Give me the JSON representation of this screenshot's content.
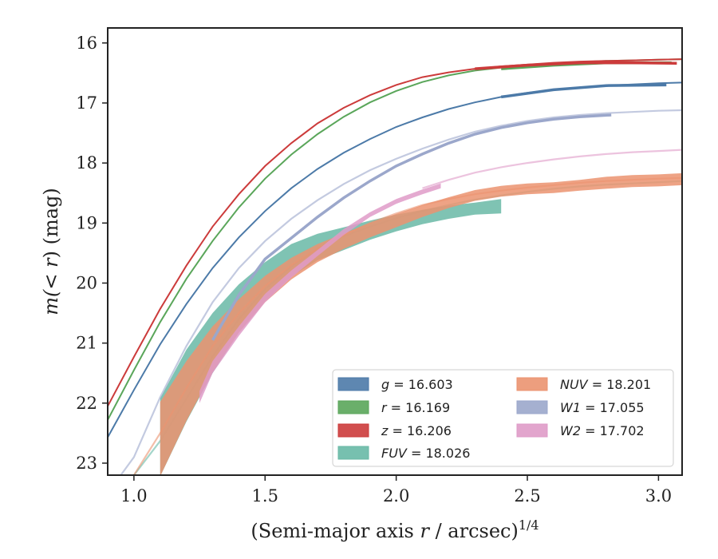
{
  "chart_data": {
    "type": "line",
    "xlabel_main": "(Semi-major axis ",
    "xlabel_r": "r",
    "xlabel_tail": " / arcsec)",
    "xlabel_exp": "1/4",
    "ylabel_main": "m(",
    "ylabel_r": "< r",
    "ylabel_tail": ") (mag)",
    "xlim": [
      0.9,
      3.09
    ],
    "ylim": [
      23.2,
      15.75
    ],
    "y_inverted": true,
    "xticks": [
      1.0,
      1.5,
      2.0,
      2.5,
      3.0
    ],
    "xtick_labels": [
      "1.0",
      "1.5",
      "2.0",
      "2.5",
      "3.0"
    ],
    "yticks": [
      16,
      17,
      18,
      19,
      20,
      21,
      22,
      23
    ],
    "ytick_labels": [
      "16",
      "17",
      "18",
      "19",
      "20",
      "21",
      "22",
      "23"
    ],
    "grid": false,
    "legend_position": "lower-right",
    "legend_columns": 2,
    "series": [
      {
        "name": "g",
        "label_var": "g",
        "label_value": "= 16.603",
        "color": "#4c7aa8",
        "model": {
          "x": [
            0.9,
            1.0,
            1.1,
            1.2,
            1.3,
            1.4,
            1.5,
            1.6,
            1.7,
            1.8,
            1.9,
            2.0,
            2.1,
            2.2,
            2.3,
            2.4,
            2.5,
            2.6,
            2.7,
            2.8,
            2.9,
            3.0,
            3.09
          ],
          "y": [
            22.57,
            21.78,
            21.02,
            20.35,
            19.75,
            19.24,
            18.8,
            18.42,
            18.1,
            17.83,
            17.6,
            17.4,
            17.24,
            17.1,
            16.99,
            16.9,
            16.83,
            16.78,
            16.74,
            16.71,
            16.69,
            16.67,
            16.66
          ]
        },
        "data": {
          "x": [
            2.4,
            2.6,
            2.8,
            3.03
          ],
          "y": [
            16.9,
            16.78,
            16.71,
            16.7
          ],
          "band": 0.02
        }
      },
      {
        "name": "r",
        "label_var": "r",
        "label_value": "= 16.169",
        "color": "#5aa65a",
        "model": {
          "x": [
            0.9,
            1.0,
            1.1,
            1.2,
            1.3,
            1.4,
            1.5,
            1.6,
            1.7,
            1.8,
            1.9,
            2.0,
            2.1,
            2.2,
            2.3,
            2.4,
            2.5,
            2.6,
            2.7,
            2.8,
            2.9,
            3.0,
            3.09
          ],
          "y": [
            22.28,
            21.45,
            20.65,
            19.93,
            19.3,
            18.74,
            18.26,
            17.86,
            17.52,
            17.23,
            16.99,
            16.8,
            16.65,
            16.54,
            16.46,
            16.41,
            16.37,
            16.34,
            16.32,
            16.3,
            16.29,
            16.28,
            16.27
          ]
        },
        "data": {
          "x": [
            2.4,
            2.6,
            2.8,
            3.05
          ],
          "y": [
            16.43,
            16.37,
            16.33,
            16.33
          ],
          "band": 0.02
        }
      },
      {
        "name": "z",
        "label_var": "z",
        "label_value": "= 16.206",
        "color": "#cc3b3b",
        "model": {
          "x": [
            0.9,
            1.0,
            1.1,
            1.2,
            1.3,
            1.4,
            1.5,
            1.6,
            1.7,
            1.8,
            1.9,
            2.0,
            2.1,
            2.2,
            2.3,
            2.4,
            2.5,
            2.6,
            2.7,
            2.8,
            2.9,
            3.0,
            3.09
          ],
          "y": [
            22.05,
            21.23,
            20.43,
            19.71,
            19.06,
            18.52,
            18.05,
            17.67,
            17.34,
            17.08,
            16.87,
            16.7,
            16.57,
            16.49,
            16.43,
            16.39,
            16.36,
            16.33,
            16.31,
            16.3,
            16.29,
            16.28,
            16.27
          ]
        },
        "data": {
          "x": [
            2.3,
            2.5,
            2.7,
            2.9,
            3.07
          ],
          "y": [
            16.43,
            16.37,
            16.33,
            16.33,
            16.34
          ],
          "band": 0.03
        }
      },
      {
        "name": "FUV",
        "label_var": "FUV",
        "label_value": "= 18.026",
        "color": "#68b9a6",
        "model": {
          "x": [
            1.0,
            1.1,
            1.2,
            1.3,
            1.4,
            1.5,
            1.6,
            1.7,
            1.8,
            1.9,
            2.0,
            2.1,
            2.2,
            2.3,
            2.4,
            2.5,
            2.6,
            2.7,
            2.8,
            2.9,
            3.0,
            3.09
          ],
          "y": [
            23.2,
            22.63,
            21.93,
            21.22,
            20.6,
            20.1,
            19.72,
            19.43,
            19.22,
            19.06,
            18.92,
            18.8,
            18.7,
            18.61,
            18.54,
            18.48,
            18.43,
            18.39,
            18.36,
            18.34,
            18.32,
            18.3
          ]
        },
        "data": {
          "x": [
            1.1,
            1.2,
            1.3,
            1.4,
            1.5,
            1.6,
            1.7,
            1.8,
            1.9,
            2.0,
            2.1,
            2.2,
            2.3,
            2.4
          ],
          "y": [
            22.57,
            21.71,
            21.0,
            20.42,
            19.97,
            19.62,
            19.4,
            19.26,
            19.12,
            19.0,
            18.9,
            18.82,
            18.76,
            18.72
          ],
          "band": [
            0.65,
            0.6,
            0.5,
            0.4,
            0.32,
            0.27,
            0.22,
            0.19,
            0.16,
            0.14,
            0.12,
            0.11,
            0.1,
            0.12
          ]
        }
      },
      {
        "name": "NUV",
        "label_var": "NUV",
        "label_value": "= 18.201",
        "color": "#eb9370",
        "model": {
          "x": [
            1.0,
            1.1,
            1.2,
            1.3,
            1.4,
            1.5,
            1.6,
            1.7,
            1.8,
            1.9,
            2.0,
            2.1,
            2.2,
            2.3,
            2.4,
            2.5,
            2.6,
            2.7,
            2.8,
            2.9,
            3.0,
            3.09
          ],
          "y": [
            23.2,
            22.5,
            21.75,
            21.05,
            20.5,
            20.05,
            19.7,
            19.43,
            19.2,
            19.0,
            18.84,
            18.7,
            18.6,
            18.52,
            18.46,
            18.41,
            18.37,
            18.33,
            18.3,
            18.28,
            18.26,
            18.25
          ]
        },
        "data": {
          "x": [
            1.1,
            1.2,
            1.3,
            1.4,
            1.5,
            1.6,
            1.7,
            1.8,
            1.9,
            2.0,
            2.1,
            2.2,
            2.3,
            2.4,
            2.5,
            2.6,
            2.7,
            2.8,
            2.9,
            3.0,
            3.09
          ],
          "y": [
            22.6,
            21.8,
            21.1,
            20.55,
            20.1,
            19.76,
            19.5,
            19.3,
            19.12,
            18.96,
            18.8,
            18.66,
            18.54,
            18.47,
            18.43,
            18.41,
            18.37,
            18.33,
            18.3,
            18.29,
            18.27
          ],
          "band": [
            0.62,
            0.5,
            0.38,
            0.28,
            0.22,
            0.18,
            0.15,
            0.13,
            0.12,
            0.11,
            0.1,
            0.09,
            0.09,
            0.09,
            0.09,
            0.09,
            0.09,
            0.1,
            0.1,
            0.1,
            0.1
          ]
        }
      },
      {
        "name": "W1",
        "label_var": "W1",
        "label_value": "= 17.055",
        "color": "#9ba7cb",
        "model": {
          "x": [
            0.95,
            1.0,
            1.1,
            1.2,
            1.3,
            1.4,
            1.5,
            1.6,
            1.7,
            1.8,
            1.9,
            2.0,
            2.1,
            2.2,
            2.3,
            2.4,
            2.5,
            2.6,
            2.7,
            2.8,
            2.9,
            3.0,
            3.09
          ],
          "y": [
            23.2,
            22.9,
            21.9,
            21.05,
            20.32,
            19.75,
            19.3,
            18.93,
            18.62,
            18.35,
            18.12,
            17.93,
            17.76,
            17.61,
            17.48,
            17.38,
            17.3,
            17.24,
            17.2,
            17.17,
            17.15,
            17.13,
            17.12
          ]
        },
        "data": {
          "x": [
            1.3,
            1.4,
            1.5,
            1.6,
            1.7,
            1.8,
            1.9,
            2.0,
            2.1,
            2.2,
            2.3,
            2.4,
            2.5,
            2.6,
            2.7,
            2.82
          ],
          "y": [
            20.95,
            20.2,
            19.6,
            19.25,
            18.9,
            18.58,
            18.3,
            18.05,
            17.85,
            17.67,
            17.52,
            17.41,
            17.33,
            17.27,
            17.23,
            17.2
          ],
          "band": 0.03
        }
      },
      {
        "name": "W2",
        "label_var": "W2",
        "label_value": "= 17.702",
        "color": "#df9bc8",
        "model": {
          "x": [
            2.1,
            2.2,
            2.3,
            2.4,
            2.5,
            2.6,
            2.7,
            2.8,
            2.9,
            3.0,
            3.09
          ],
          "y": [
            18.42,
            18.28,
            18.16,
            18.07,
            18.0,
            17.94,
            17.89,
            17.85,
            17.82,
            17.8,
            17.78
          ]
        },
        "data": {
          "x": [
            1.25,
            1.3,
            1.4,
            1.5,
            1.6,
            1.7,
            1.8,
            1.9,
            2.0,
            2.1,
            2.17
          ],
          "y": [
            21.9,
            21.4,
            20.8,
            20.25,
            19.85,
            19.5,
            19.15,
            18.86,
            18.64,
            18.48,
            18.38
          ],
          "band": [
            0.1,
            0.1,
            0.08,
            0.07,
            0.06,
            0.05,
            0.05,
            0.04,
            0.04,
            0.04,
            0.04
          ]
        }
      }
    ]
  }
}
